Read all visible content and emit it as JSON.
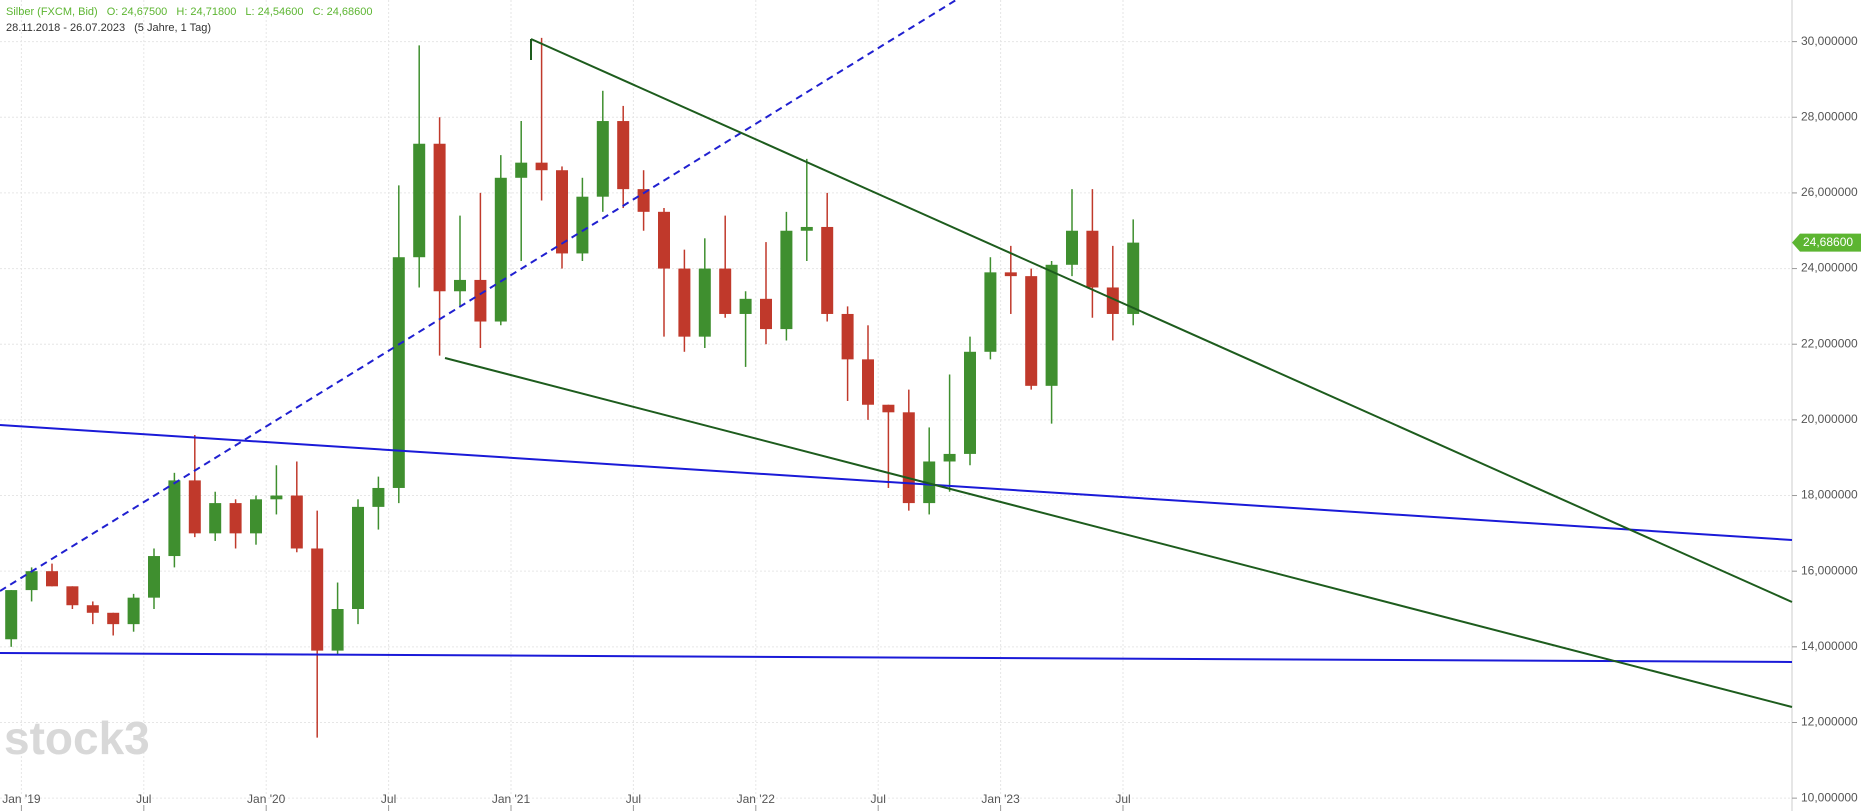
{
  "header": {
    "instrument": "Silber (FXCM, Bid)",
    "open": "O: 24,67500",
    "high": "H: 24,71800",
    "low": "L: 24,54600",
    "close": "C: 24,68600",
    "range": "28.11.2018 - 26.07.2023",
    "period": "(5 Jahre, 1 Tag)",
    "logo": "stock3"
  },
  "chart_data": {
    "type": "candlestick",
    "categories": [
      null,
      "Jan '19",
      null,
      null,
      null,
      null,
      null,
      "Jul",
      null,
      null,
      null,
      null,
      null,
      "Jan '20",
      null,
      null,
      null,
      null,
      null,
      "Jul",
      null,
      null,
      null,
      null,
      null,
      "Jan '21",
      null,
      null,
      null,
      null,
      null,
      "Jul",
      null,
      null,
      null,
      null,
      null,
      "Jan '22",
      null,
      null,
      null,
      null,
      null,
      "Jul",
      null,
      null,
      null,
      null,
      null,
      "Jan '23",
      null,
      null,
      null,
      null,
      null,
      "Jul"
    ],
    "open": [
      14.2,
      15.5,
      16.0,
      15.6,
      15.1,
      14.9,
      14.6,
      15.3,
      16.4,
      18.4,
      17.0,
      17.8,
      17.0,
      17.9,
      18.0,
      16.6,
      13.9,
      15.0,
      17.7,
      18.2,
      24.3,
      27.3,
      23.4,
      23.7,
      22.6,
      26.4,
      26.8,
      26.6,
      24.4,
      25.9,
      27.9,
      26.1,
      25.5,
      24.0,
      22.2,
      24.0,
      22.8,
      23.2,
      22.4,
      25.0,
      25.1,
      22.8,
      21.6,
      20.4,
      20.2,
      17.8,
      18.9,
      19.1,
      21.8,
      23.9,
      23.8,
      20.9,
      24.1,
      25.0,
      23.5,
      22.8
    ],
    "high": [
      15.5,
      16.1,
      16.2,
      15.6,
      15.2,
      14.9,
      15.4,
      16.6,
      18.6,
      19.6,
      18.1,
      17.9,
      18.0,
      18.8,
      18.9,
      17.6,
      15.7,
      17.9,
      18.5,
      26.2,
      29.9,
      28.0,
      25.4,
      26.0,
      27.0,
      27.9,
      30.1,
      26.7,
      26.4,
      28.7,
      28.3,
      26.6,
      25.6,
      24.5,
      24.8,
      25.4,
      23.4,
      24.7,
      25.5,
      26.9,
      26.0,
      23.0,
      22.5,
      20.4,
      20.8,
      19.8,
      21.2,
      22.2,
      24.3,
      24.6,
      24.0,
      24.2,
      26.1,
      26.1,
      24.6,
      25.3
    ],
    "low": [
      14.0,
      15.2,
      15.6,
      15.0,
      14.6,
      14.3,
      14.4,
      15.0,
      16.1,
      16.9,
      16.8,
      16.6,
      16.7,
      17.5,
      16.5,
      11.6,
      13.8,
      14.6,
      17.1,
      17.8,
      23.5,
      21.7,
      23.0,
      21.9,
      22.5,
      24.2,
      25.8,
      24.0,
      24.2,
      25.5,
      25.6,
      25.0,
      22.2,
      21.8,
      21.9,
      22.7,
      21.4,
      22.0,
      22.1,
      24.2,
      22.6,
      20.5,
      20.0,
      18.2,
      17.6,
      17.5,
      18.1,
      18.8,
      21.6,
      22.8,
      20.8,
      19.9,
      23.8,
      22.7,
      22.1,
      22.5
    ],
    "close": [
      15.5,
      16.0,
      15.6,
      15.1,
      14.9,
      14.6,
      15.3,
      16.4,
      18.4,
      17.0,
      17.8,
      17.0,
      17.9,
      18.0,
      16.6,
      13.9,
      15.0,
      17.7,
      18.2,
      24.3,
      27.3,
      23.4,
      23.7,
      22.6,
      26.4,
      26.8,
      26.6,
      24.4,
      25.9,
      27.9,
      26.1,
      25.5,
      24.0,
      22.2,
      24.0,
      22.8,
      23.2,
      22.4,
      25.0,
      25.1,
      22.8,
      21.6,
      20.4,
      20.2,
      17.8,
      18.9,
      19.1,
      21.8,
      23.9,
      23.8,
      20.9,
      24.1,
      25.0,
      23.5,
      22.8,
      24.686
    ],
    "up_color": "#3f8f2f",
    "down_color": "#c0392b",
    "last_label": "24,68600",
    "last_color": "#5cb531",
    "ylim": [
      9.66,
      31.1
    ],
    "yticks": [
      {
        "value": 10,
        "label": "10,000000"
      },
      {
        "value": 12,
        "label": "12,000000"
      },
      {
        "value": 14,
        "label": "14,000000"
      },
      {
        "value": 16,
        "label": "16,000000"
      },
      {
        "value": 18,
        "label": "18,000000"
      },
      {
        "value": 20,
        "label": "20,000000"
      },
      {
        "value": 22,
        "label": "22,000000"
      },
      {
        "value": 24,
        "label": "24,000000"
      },
      {
        "value": 26,
        "label": "26,000000"
      },
      {
        "value": 28,
        "label": "28,000000"
      },
      {
        "value": 30,
        "label": "30,000000"
      }
    ],
    "grid": true
  }
}
